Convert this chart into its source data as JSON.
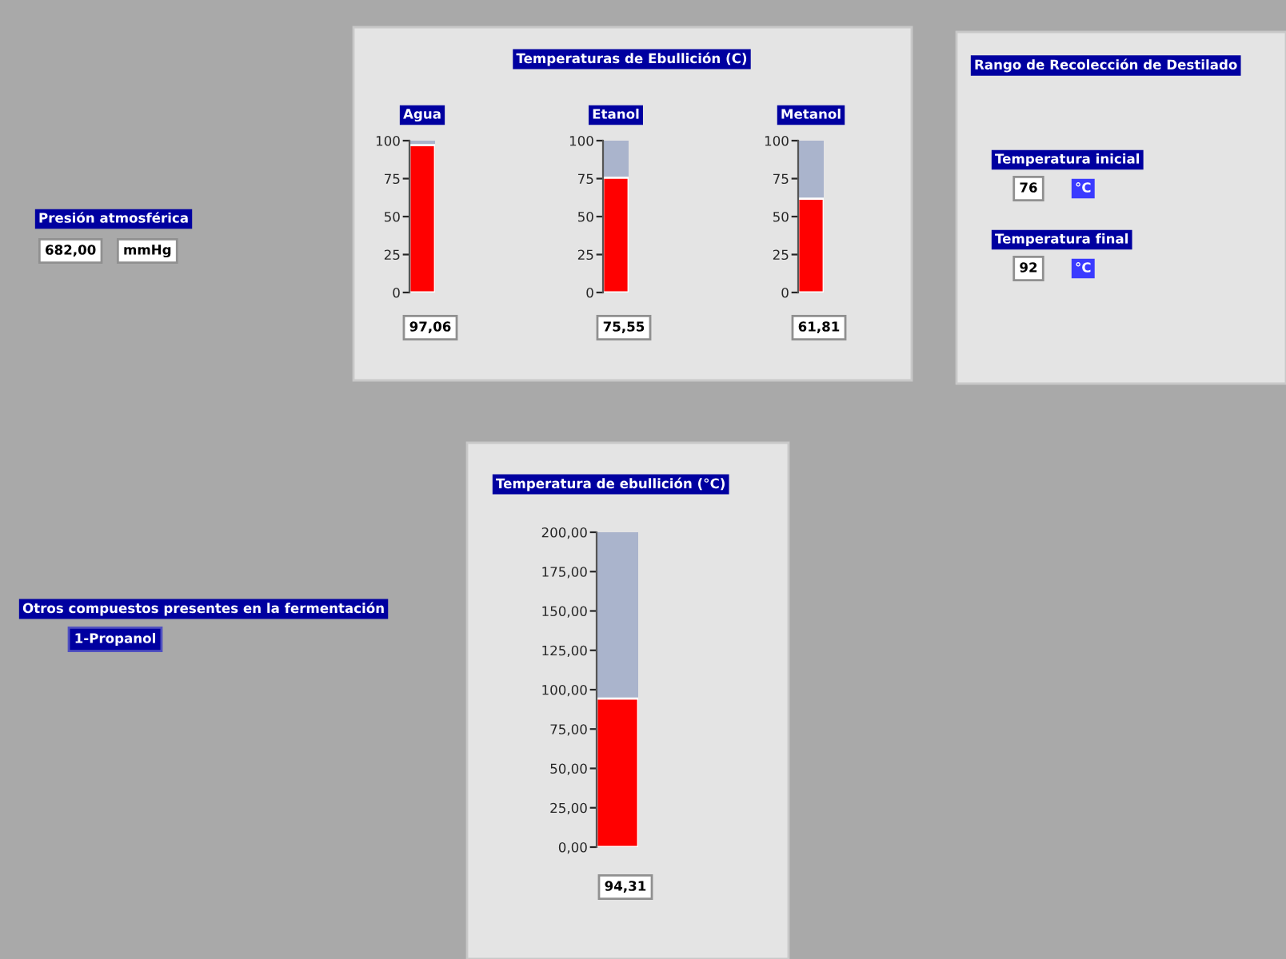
{
  "chart_data": [
    {
      "type": "other",
      "title": "Presión atmosférica",
      "annotations": [
        "682,00",
        "mmHg"
      ]
    },
    {
      "type": "other",
      "title": "Temperaturas de Ebullición (C)"
    },
    {
      "type": "bar",
      "categories": [
        "Agua"
      ],
      "values": [
        97.06
      ],
      "value_labels": [
        "97,06"
      ],
      "color": "#ff0000",
      "ylim": [
        0,
        100
      ],
      "yticks": [
        0,
        25,
        50,
        75,
        100
      ]
    },
    {
      "type": "bar",
      "categories": [
        "Etanol"
      ],
      "values": [
        75.55
      ],
      "value_labels": [
        "75,55"
      ],
      "color": "#ff0000",
      "ylim": [
        0,
        100
      ],
      "yticks": [
        0,
        25,
        50,
        75,
        100
      ]
    },
    {
      "type": "bar",
      "categories": [
        "Metanol"
      ],
      "values": [
        61.81
      ],
      "value_labels": [
        "61,81"
      ],
      "color": "#ff0000",
      "ylim": [
        0,
        100
      ],
      "yticks": [
        0,
        25,
        50,
        75,
        100
      ]
    },
    {
      "type": "other",
      "title": "Rango de Recolección de Destilado",
      "annotations": [
        "Temperatura inicial",
        "76",
        "°C",
        "Temperatura final",
        "92",
        "°C"
      ]
    },
    {
      "type": "other",
      "title": "Otros compuestos presentes en la fermentación",
      "annotations": [
        "1-Propanol"
      ]
    },
    {
      "type": "bar",
      "title": "Temperatura de ebullición (°C)",
      "categories": [
        null
      ],
      "values": [
        94.31
      ],
      "value_labels": [
        "94,31"
      ],
      "color": "#ff0000",
      "ylim": [
        0,
        200
      ],
      "yticks": [
        {
          "value": 0,
          "label": "0,00"
        },
        {
          "value": 25,
          "label": "25,00"
        },
        {
          "value": 50,
          "label": "50,00"
        },
        {
          "value": 75,
          "label": "75,00"
        },
        {
          "value": 100,
          "label": "100,00"
        },
        {
          "value": 125,
          "label": "125,00"
        },
        {
          "value": 150,
          "label": "150,00"
        },
        {
          "value": 175,
          "label": "175,00"
        },
        {
          "value": 200,
          "label": "200,00"
        }
      ]
    }
  ]
}
